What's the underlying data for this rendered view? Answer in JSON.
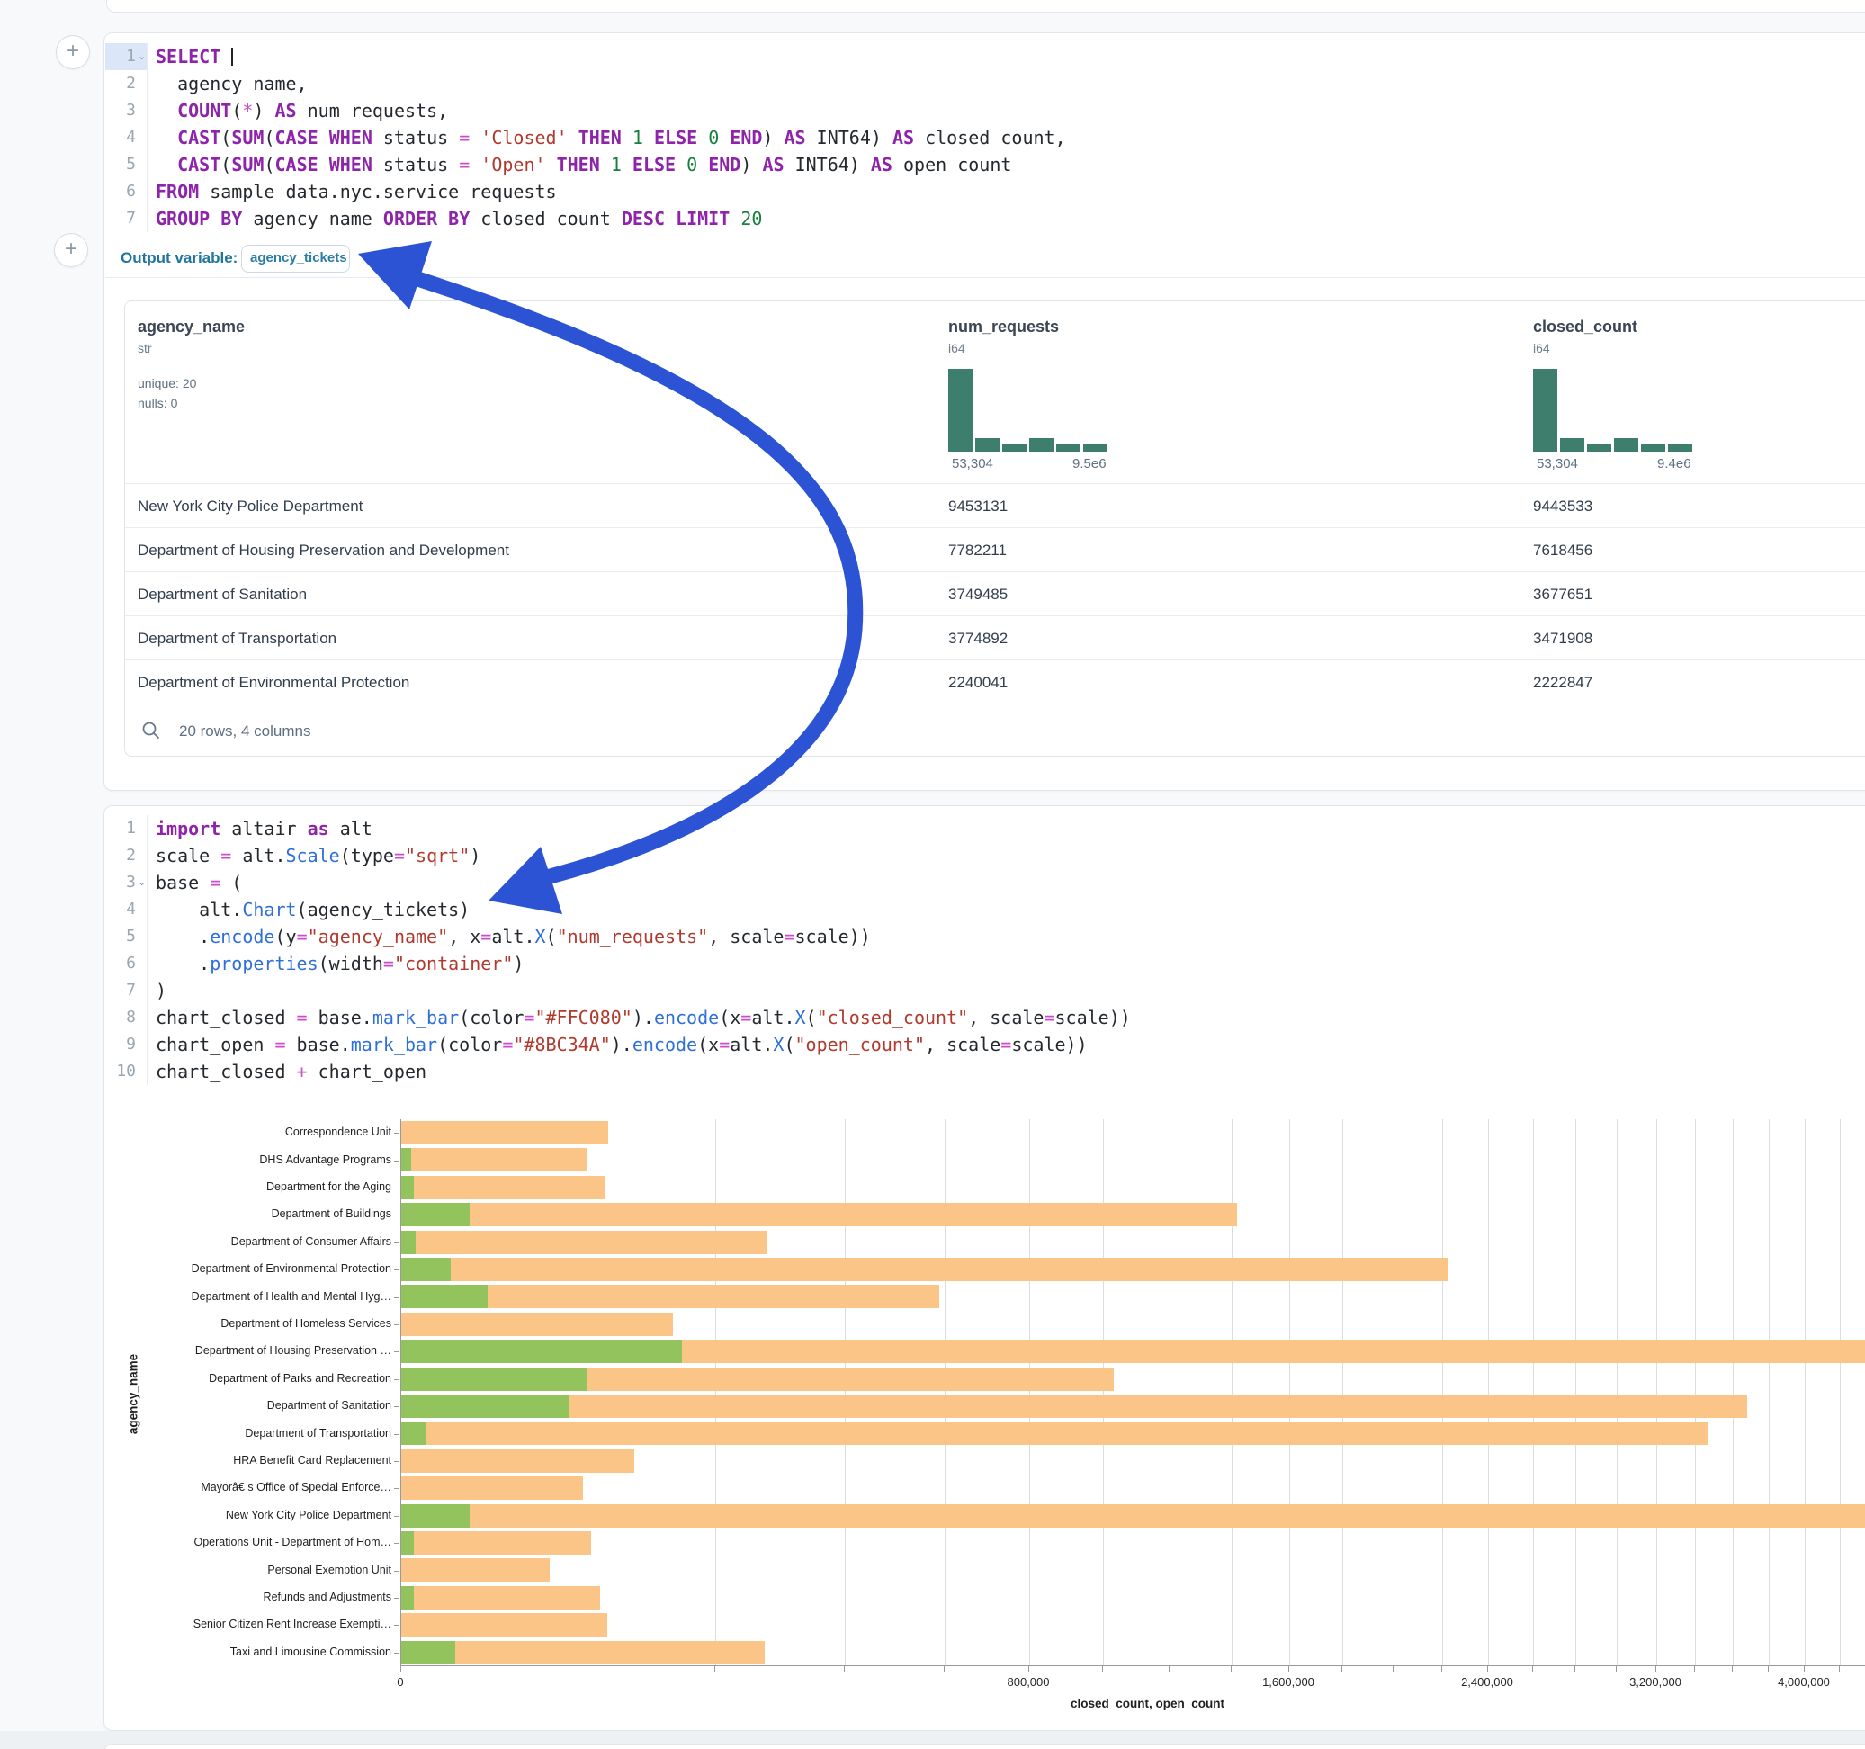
{
  "ui": {
    "add_button": "+",
    "collapse_icon": "⌄",
    "output_variable_label": "Output variable:",
    "output_variable_value": "agency_tickets",
    "arrow_color": "#2b53d4"
  },
  "sql_cell": {
    "lines": [
      {
        "num": "1",
        "chev": true,
        "active": true,
        "cursor": true,
        "tokens": [
          [
            "kw",
            "SELECT"
          ],
          [
            "plain",
            " "
          ]
        ]
      },
      {
        "num": "2",
        "tokens": [
          [
            "plain",
            "  agency_name,"
          ]
        ]
      },
      {
        "num": "3",
        "tokens": [
          [
            "plain",
            "  "
          ],
          [
            "kw",
            "COUNT"
          ],
          [
            "plain",
            "("
          ],
          [
            "op",
            "*"
          ],
          [
            "plain",
            ") "
          ],
          [
            "kw",
            "AS"
          ],
          [
            "plain",
            " num_requests,"
          ]
        ]
      },
      {
        "num": "4",
        "tokens": [
          [
            "plain",
            "  "
          ],
          [
            "kw",
            "CAST"
          ],
          [
            "plain",
            "("
          ],
          [
            "kw",
            "SUM"
          ],
          [
            "plain",
            "("
          ],
          [
            "kw",
            "CASE"
          ],
          [
            "plain",
            " "
          ],
          [
            "kw",
            "WHEN"
          ],
          [
            "plain",
            " status "
          ],
          [
            "op",
            "="
          ],
          [
            "plain",
            " "
          ],
          [
            "str",
            "'Closed'"
          ],
          [
            "plain",
            " "
          ],
          [
            "kw",
            "THEN"
          ],
          [
            "plain",
            " "
          ],
          [
            "num",
            "1"
          ],
          [
            "plain",
            " "
          ],
          [
            "kw",
            "ELSE"
          ],
          [
            "plain",
            " "
          ],
          [
            "num",
            "0"
          ],
          [
            "plain",
            " "
          ],
          [
            "kw",
            "END"
          ],
          [
            "plain",
            ") "
          ],
          [
            "kw",
            "AS"
          ],
          [
            "plain",
            " INT64) "
          ],
          [
            "kw",
            "AS"
          ],
          [
            "plain",
            " closed_count,"
          ]
        ]
      },
      {
        "num": "5",
        "tokens": [
          [
            "plain",
            "  "
          ],
          [
            "kw",
            "CAST"
          ],
          [
            "plain",
            "("
          ],
          [
            "kw",
            "SUM"
          ],
          [
            "plain",
            "("
          ],
          [
            "kw",
            "CASE"
          ],
          [
            "plain",
            " "
          ],
          [
            "kw",
            "WHEN"
          ],
          [
            "plain",
            " status "
          ],
          [
            "op",
            "="
          ],
          [
            "plain",
            " "
          ],
          [
            "str",
            "'Open'"
          ],
          [
            "plain",
            " "
          ],
          [
            "kw",
            "THEN"
          ],
          [
            "plain",
            " "
          ],
          [
            "num",
            "1"
          ],
          [
            "plain",
            " "
          ],
          [
            "kw",
            "ELSE"
          ],
          [
            "plain",
            " "
          ],
          [
            "num",
            "0"
          ],
          [
            "plain",
            " "
          ],
          [
            "kw",
            "END"
          ],
          [
            "plain",
            ") "
          ],
          [
            "kw",
            "AS"
          ],
          [
            "plain",
            " INT64) "
          ],
          [
            "kw",
            "AS"
          ],
          [
            "plain",
            " open_count"
          ]
        ]
      },
      {
        "num": "6",
        "tokens": [
          [
            "kw",
            "FROM"
          ],
          [
            "plain",
            " sample_data.nyc.service_requests"
          ]
        ]
      },
      {
        "num": "7",
        "tokens": [
          [
            "kw",
            "GROUP"
          ],
          [
            "plain",
            " "
          ],
          [
            "kw",
            "BY"
          ],
          [
            "plain",
            " agency_name "
          ],
          [
            "kw",
            "ORDER"
          ],
          [
            "plain",
            " "
          ],
          [
            "kw",
            "BY"
          ],
          [
            "plain",
            " closed_count "
          ],
          [
            "kw",
            "DESC"
          ],
          [
            "plain",
            " "
          ],
          [
            "kw",
            "LIMIT"
          ],
          [
            "plain",
            " "
          ],
          [
            "num",
            "20"
          ]
        ]
      }
    ]
  },
  "table": {
    "hist_color": "#3e7e6c",
    "columns": [
      {
        "name": "agency_name",
        "type": "str",
        "stats": [
          "unique: 20",
          "nulls: 0"
        ]
      },
      {
        "name": "num_requests",
        "type": "i64",
        "hist": [
          1,
          0.16,
          0.1,
          0.16,
          0.1,
          0.09
        ],
        "hist_min": "53,304",
        "hist_max": "9.5e6"
      },
      {
        "name": "closed_count",
        "type": "i64",
        "hist": [
          1,
          0.16,
          0.1,
          0.16,
          0.1,
          0.09
        ],
        "hist_min": "53,304",
        "hist_max": "9.4e6"
      }
    ],
    "rows": [
      [
        "New York City Police Department",
        "9453131",
        "9443533"
      ],
      [
        "Department of Housing Preservation and Development",
        "7782211",
        "7618456"
      ],
      [
        "Department of Sanitation",
        "3749485",
        "3677651"
      ],
      [
        "Department of Transportation",
        "3774892",
        "3471908"
      ],
      [
        "Department of Environmental Protection",
        "2240041",
        "2222847"
      ]
    ],
    "footer": "20 rows, 4 columns"
  },
  "python_cell": {
    "lines": [
      {
        "num": "1",
        "tokens": [
          [
            "kw",
            "import"
          ],
          [
            "plain",
            " altair "
          ],
          [
            "kw",
            "as"
          ],
          [
            "plain",
            " alt"
          ]
        ]
      },
      {
        "num": "2",
        "tokens": [
          [
            "plain",
            "scale "
          ],
          [
            "op",
            "="
          ],
          [
            "plain",
            " alt."
          ],
          [
            "fn",
            "Scale"
          ],
          [
            "plain",
            "(type"
          ],
          [
            "op",
            "="
          ],
          [
            "str",
            "\"sqrt\""
          ],
          [
            "plain",
            ")"
          ]
        ]
      },
      {
        "num": "3",
        "chev": true,
        "tokens": [
          [
            "plain",
            "base "
          ],
          [
            "op",
            "="
          ],
          [
            "plain",
            " ("
          ]
        ]
      },
      {
        "num": "4",
        "tokens": [
          [
            "plain",
            "    alt."
          ],
          [
            "fn",
            "Chart"
          ],
          [
            "plain",
            "(agency_tickets)"
          ]
        ]
      },
      {
        "num": "5",
        "tokens": [
          [
            "plain",
            "    ."
          ],
          [
            "fn",
            "encode"
          ],
          [
            "plain",
            "(y"
          ],
          [
            "op",
            "="
          ],
          [
            "str",
            "\"agency_name\""
          ],
          [
            "plain",
            ", x"
          ],
          [
            "op",
            "="
          ],
          [
            "plain",
            "alt."
          ],
          [
            "fn",
            "X"
          ],
          [
            "plain",
            "("
          ],
          [
            "str",
            "\"num_requests\""
          ],
          [
            "plain",
            ", scale"
          ],
          [
            "op",
            "="
          ],
          [
            "plain",
            "scale))"
          ]
        ]
      },
      {
        "num": "6",
        "tokens": [
          [
            "plain",
            "    ."
          ],
          [
            "fn",
            "properties"
          ],
          [
            "plain",
            "(width"
          ],
          [
            "op",
            "="
          ],
          [
            "str",
            "\"container\""
          ],
          [
            "plain",
            ")"
          ]
        ]
      },
      {
        "num": "7",
        "tokens": [
          [
            "plain",
            ")"
          ]
        ]
      },
      {
        "num": "8",
        "tokens": [
          [
            "plain",
            "chart_closed "
          ],
          [
            "op",
            "="
          ],
          [
            "plain",
            " base."
          ],
          [
            "fn",
            "mark_bar"
          ],
          [
            "plain",
            "(color"
          ],
          [
            "op",
            "="
          ],
          [
            "str",
            "\"#FFC080\""
          ],
          [
            "plain",
            ")."
          ],
          [
            "fn",
            "encode"
          ],
          [
            "plain",
            "(x"
          ],
          [
            "op",
            "="
          ],
          [
            "plain",
            "alt."
          ],
          [
            "fn",
            "X"
          ],
          [
            "plain",
            "("
          ],
          [
            "str",
            "\"closed_count\""
          ],
          [
            "plain",
            ", scale"
          ],
          [
            "op",
            "="
          ],
          [
            "plain",
            "scale))"
          ]
        ]
      },
      {
        "num": "9",
        "tokens": [
          [
            "plain",
            "chart_open "
          ],
          [
            "op",
            "="
          ],
          [
            "plain",
            " base."
          ],
          [
            "fn",
            "mark_bar"
          ],
          [
            "plain",
            "(color"
          ],
          [
            "op",
            "="
          ],
          [
            "str",
            "\"#8BC34A\""
          ],
          [
            "plain",
            ")."
          ],
          [
            "fn",
            "encode"
          ],
          [
            "plain",
            "(x"
          ],
          [
            "op",
            "="
          ],
          [
            "plain",
            "alt."
          ],
          [
            "fn",
            "X"
          ],
          [
            "plain",
            "("
          ],
          [
            "str",
            "\"open_count\""
          ],
          [
            "plain",
            ", scale"
          ],
          [
            "op",
            "="
          ],
          [
            "plain",
            "scale))"
          ]
        ]
      },
      {
        "num": "10",
        "tokens": [
          [
            "plain",
            "chart_closed "
          ],
          [
            "op",
            "+"
          ],
          [
            "plain",
            " chart_open"
          ]
        ]
      }
    ]
  },
  "chart_data": {
    "type": "bar",
    "orientation": "horizontal",
    "x_scale": "sqrt",
    "title": "",
    "xlabel": "closed_count, open_count",
    "ylabel": "agency_name",
    "grid": true,
    "gridline_step": 200000,
    "x_max_visible": 4360000,
    "x_ticks": [
      {
        "v": 0,
        "label": "0"
      },
      {
        "v": 800000,
        "label": "800,000"
      },
      {
        "v": 1600000,
        "label": "1,600,000"
      },
      {
        "v": 2400000,
        "label": "2,400,000"
      },
      {
        "v": 3200000,
        "label": "3,200,000"
      },
      {
        "v": 4000000,
        "label": "4,000,000"
      }
    ],
    "categories": [
      "Correspondence Unit",
      "DHS Advantage Programs",
      "Department for the Aging",
      "Department of Buildings",
      "Department of Consumer Affairs",
      "Department of Environmental Protection",
      "Department of Health and Mental Hyg…",
      "Department of Homeless Services",
      "Department of Housing Preservation …",
      "Department of Parks and Recreation",
      "Department of Sanitation",
      "Department of Transportation",
      "HRA Benefit Card Replacement",
      "Mayorâ€ s Office of Special Enforce…",
      "New York City Police Department",
      "Operations Unit - Department of Hom…",
      "Personal Exemption Unit",
      "Refunds and Adjustments",
      "Senior Citizen Rent Increase Exempti…",
      "Taxi and Limousine Commission"
    ],
    "series": [
      {
        "name": "closed_count",
        "color": "#FBC587",
        "values": [
          87000,
          70000,
          85000,
          1420000,
          272000,
          2222847,
          588000,
          150000,
          7618456,
          1030000,
          3677651,
          3471908,
          110000,
          67000,
          9443533,
          73000,
          45000,
          80000,
          86000,
          268000
        ]
      },
      {
        "name": "open_count",
        "color": "#93C35C",
        "values": [
          0,
          200,
          300,
          9500,
          400,
          5000,
          15000,
          0,
          160000,
          70000,
          57000,
          1200,
          0,
          0,
          9500,
          300,
          0,
          300,
          0,
          6000
        ]
      }
    ]
  }
}
